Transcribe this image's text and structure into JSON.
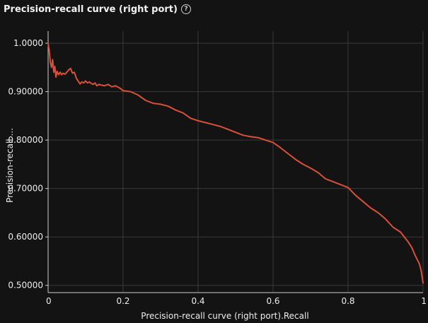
{
  "header": {
    "title": "Precision-recall curve (right port)",
    "help_icon": "question-circle-icon",
    "help_glyph": "?"
  },
  "colors": {
    "background": "#131313",
    "grid": "#3a3a3a",
    "axis": "#cfcfcf",
    "series": "#d9503a"
  },
  "chart_data": {
    "type": "line",
    "title": "Precision-recall curve (right port)",
    "xlabel": "Precision-recall curve (right port).Recall",
    "ylabel": "Precision-recall ...",
    "xlim": [
      0,
      1
    ],
    "ylim": [
      0.485,
      1.025
    ],
    "x_ticks": [
      0,
      0.2,
      0.4,
      0.6,
      0.8,
      1
    ],
    "x_tick_labels": [
      "0",
      "0.2",
      "0.4",
      "0.6",
      "0.8",
      "1"
    ],
    "y_ticks": [
      0.5,
      0.6,
      0.7,
      0.8,
      0.9,
      1.0
    ],
    "y_tick_labels": [
      "0.50000",
      "0.60000",
      "0.70000",
      "0.80000",
      "0.90000",
      "1.0000"
    ],
    "grid": true,
    "series": [
      {
        "x": [
          0,
          0.003,
          0.006,
          0.009,
          0.012,
          0.015,
          0.018,
          0.021,
          0.024,
          0.028,
          0.032,
          0.036,
          0.04,
          0.045,
          0.05,
          0.055,
          0.06,
          0.065,
          0.07,
          0.075,
          0.08,
          0.085,
          0.09,
          0.095,
          0.1,
          0.105,
          0.11,
          0.115,
          0.12,
          0.125,
          0.13,
          0.135,
          0.14,
          0.15,
          0.16,
          0.17,
          0.18,
          0.19,
          0.2,
          0.22,
          0.24,
          0.26,
          0.28,
          0.3,
          0.32,
          0.34,
          0.36,
          0.38,
          0.4,
          0.42,
          0.44,
          0.46,
          0.48,
          0.5,
          0.52,
          0.54,
          0.56,
          0.58,
          0.6,
          0.62,
          0.64,
          0.66,
          0.68,
          0.7,
          0.72,
          0.74,
          0.76,
          0.78,
          0.8,
          0.82,
          0.84,
          0.86,
          0.88,
          0.9,
          0.92,
          0.94,
          0.96,
          0.97,
          0.98,
          0.99,
          0.995,
          1.0
        ],
        "y": [
          1.0,
          0.985,
          0.96,
          0.95,
          0.966,
          0.94,
          0.952,
          0.93,
          0.942,
          0.935,
          0.94,
          0.935,
          0.938,
          0.936,
          0.94,
          0.945,
          0.948,
          0.938,
          0.94,
          0.928,
          0.922,
          0.916,
          0.92,
          0.918,
          0.922,
          0.918,
          0.92,
          0.917,
          0.915,
          0.918,
          0.912,
          0.915,
          0.914,
          0.912,
          0.915,
          0.91,
          0.912,
          0.908,
          0.902,
          0.9,
          0.893,
          0.882,
          0.876,
          0.874,
          0.87,
          0.862,
          0.856,
          0.845,
          0.84,
          0.836,
          0.832,
          0.828,
          0.822,
          0.816,
          0.81,
          0.807,
          0.805,
          0.8,
          0.795,
          0.784,
          0.772,
          0.76,
          0.75,
          0.742,
          0.733,
          0.72,
          0.714,
          0.708,
          0.702,
          0.686,
          0.673,
          0.66,
          0.65,
          0.637,
          0.62,
          0.61,
          0.59,
          0.578,
          0.56,
          0.545,
          0.53,
          0.505
        ]
      }
    ]
  }
}
